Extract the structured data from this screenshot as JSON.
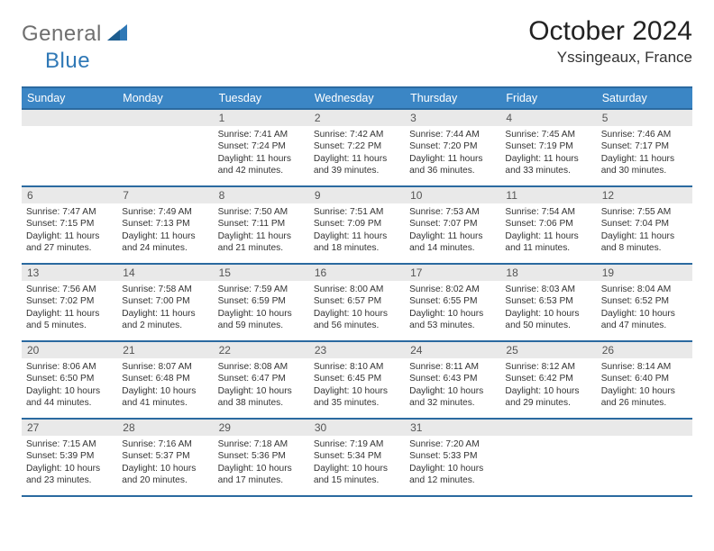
{
  "brand": {
    "part1": "General",
    "part2": "Blue"
  },
  "title": "October 2024",
  "location": "Yssingeaux, France",
  "colors": {
    "header_bg": "#3b86c5",
    "header_text": "#ffffff",
    "border": "#2b6aa0",
    "daynum_bg": "#e9e9e9",
    "logo_gray": "#6f6f6f",
    "logo_blue": "#2f78b6"
  },
  "day_headers": [
    "Sunday",
    "Monday",
    "Tuesday",
    "Wednesday",
    "Thursday",
    "Friday",
    "Saturday"
  ],
  "weeks": [
    [
      {
        "n": "",
        "sr": "",
        "ss": "",
        "dl": ""
      },
      {
        "n": "",
        "sr": "",
        "ss": "",
        "dl": ""
      },
      {
        "n": "1",
        "sr": "Sunrise: 7:41 AM",
        "ss": "Sunset: 7:24 PM",
        "dl": "Daylight: 11 hours and 42 minutes."
      },
      {
        "n": "2",
        "sr": "Sunrise: 7:42 AM",
        "ss": "Sunset: 7:22 PM",
        "dl": "Daylight: 11 hours and 39 minutes."
      },
      {
        "n": "3",
        "sr": "Sunrise: 7:44 AM",
        "ss": "Sunset: 7:20 PM",
        "dl": "Daylight: 11 hours and 36 minutes."
      },
      {
        "n": "4",
        "sr": "Sunrise: 7:45 AM",
        "ss": "Sunset: 7:19 PM",
        "dl": "Daylight: 11 hours and 33 minutes."
      },
      {
        "n": "5",
        "sr": "Sunrise: 7:46 AM",
        "ss": "Sunset: 7:17 PM",
        "dl": "Daylight: 11 hours and 30 minutes."
      }
    ],
    [
      {
        "n": "6",
        "sr": "Sunrise: 7:47 AM",
        "ss": "Sunset: 7:15 PM",
        "dl": "Daylight: 11 hours and 27 minutes."
      },
      {
        "n": "7",
        "sr": "Sunrise: 7:49 AM",
        "ss": "Sunset: 7:13 PM",
        "dl": "Daylight: 11 hours and 24 minutes."
      },
      {
        "n": "8",
        "sr": "Sunrise: 7:50 AM",
        "ss": "Sunset: 7:11 PM",
        "dl": "Daylight: 11 hours and 21 minutes."
      },
      {
        "n": "9",
        "sr": "Sunrise: 7:51 AM",
        "ss": "Sunset: 7:09 PM",
        "dl": "Daylight: 11 hours and 18 minutes."
      },
      {
        "n": "10",
        "sr": "Sunrise: 7:53 AM",
        "ss": "Sunset: 7:07 PM",
        "dl": "Daylight: 11 hours and 14 minutes."
      },
      {
        "n": "11",
        "sr": "Sunrise: 7:54 AM",
        "ss": "Sunset: 7:06 PM",
        "dl": "Daylight: 11 hours and 11 minutes."
      },
      {
        "n": "12",
        "sr": "Sunrise: 7:55 AM",
        "ss": "Sunset: 7:04 PM",
        "dl": "Daylight: 11 hours and 8 minutes."
      }
    ],
    [
      {
        "n": "13",
        "sr": "Sunrise: 7:56 AM",
        "ss": "Sunset: 7:02 PM",
        "dl": "Daylight: 11 hours and 5 minutes."
      },
      {
        "n": "14",
        "sr": "Sunrise: 7:58 AM",
        "ss": "Sunset: 7:00 PM",
        "dl": "Daylight: 11 hours and 2 minutes."
      },
      {
        "n": "15",
        "sr": "Sunrise: 7:59 AM",
        "ss": "Sunset: 6:59 PM",
        "dl": "Daylight: 10 hours and 59 minutes."
      },
      {
        "n": "16",
        "sr": "Sunrise: 8:00 AM",
        "ss": "Sunset: 6:57 PM",
        "dl": "Daylight: 10 hours and 56 minutes."
      },
      {
        "n": "17",
        "sr": "Sunrise: 8:02 AM",
        "ss": "Sunset: 6:55 PM",
        "dl": "Daylight: 10 hours and 53 minutes."
      },
      {
        "n": "18",
        "sr": "Sunrise: 8:03 AM",
        "ss": "Sunset: 6:53 PM",
        "dl": "Daylight: 10 hours and 50 minutes."
      },
      {
        "n": "19",
        "sr": "Sunrise: 8:04 AM",
        "ss": "Sunset: 6:52 PM",
        "dl": "Daylight: 10 hours and 47 minutes."
      }
    ],
    [
      {
        "n": "20",
        "sr": "Sunrise: 8:06 AM",
        "ss": "Sunset: 6:50 PM",
        "dl": "Daylight: 10 hours and 44 minutes."
      },
      {
        "n": "21",
        "sr": "Sunrise: 8:07 AM",
        "ss": "Sunset: 6:48 PM",
        "dl": "Daylight: 10 hours and 41 minutes."
      },
      {
        "n": "22",
        "sr": "Sunrise: 8:08 AM",
        "ss": "Sunset: 6:47 PM",
        "dl": "Daylight: 10 hours and 38 minutes."
      },
      {
        "n": "23",
        "sr": "Sunrise: 8:10 AM",
        "ss": "Sunset: 6:45 PM",
        "dl": "Daylight: 10 hours and 35 minutes."
      },
      {
        "n": "24",
        "sr": "Sunrise: 8:11 AM",
        "ss": "Sunset: 6:43 PM",
        "dl": "Daylight: 10 hours and 32 minutes."
      },
      {
        "n": "25",
        "sr": "Sunrise: 8:12 AM",
        "ss": "Sunset: 6:42 PM",
        "dl": "Daylight: 10 hours and 29 minutes."
      },
      {
        "n": "26",
        "sr": "Sunrise: 8:14 AM",
        "ss": "Sunset: 6:40 PM",
        "dl": "Daylight: 10 hours and 26 minutes."
      }
    ],
    [
      {
        "n": "27",
        "sr": "Sunrise: 7:15 AM",
        "ss": "Sunset: 5:39 PM",
        "dl": "Daylight: 10 hours and 23 minutes."
      },
      {
        "n": "28",
        "sr": "Sunrise: 7:16 AM",
        "ss": "Sunset: 5:37 PM",
        "dl": "Daylight: 10 hours and 20 minutes."
      },
      {
        "n": "29",
        "sr": "Sunrise: 7:18 AM",
        "ss": "Sunset: 5:36 PM",
        "dl": "Daylight: 10 hours and 17 minutes."
      },
      {
        "n": "30",
        "sr": "Sunrise: 7:19 AM",
        "ss": "Sunset: 5:34 PM",
        "dl": "Daylight: 10 hours and 15 minutes."
      },
      {
        "n": "31",
        "sr": "Sunrise: 7:20 AM",
        "ss": "Sunset: 5:33 PM",
        "dl": "Daylight: 10 hours and 12 minutes."
      },
      {
        "n": "",
        "sr": "",
        "ss": "",
        "dl": ""
      },
      {
        "n": "",
        "sr": "",
        "ss": "",
        "dl": ""
      }
    ]
  ]
}
